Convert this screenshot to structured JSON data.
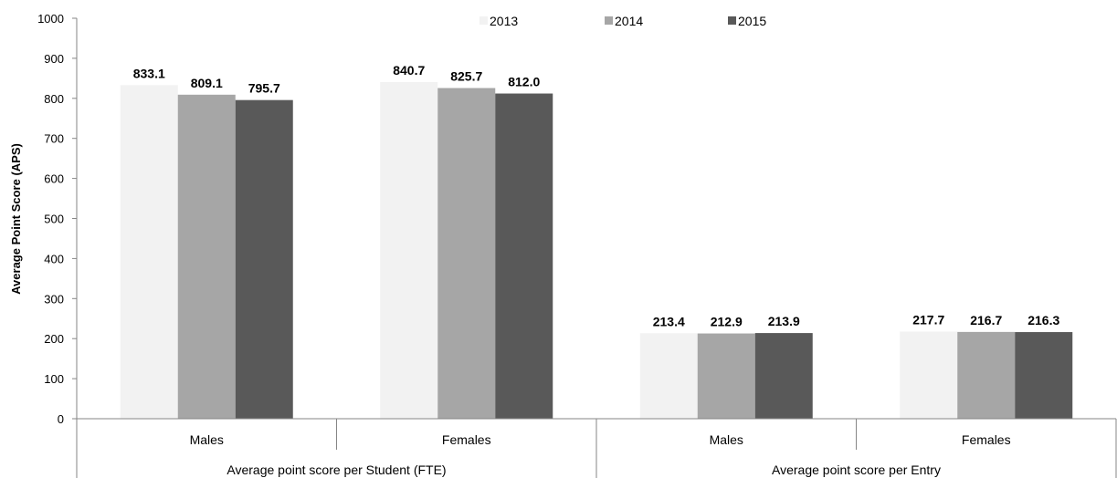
{
  "chart_data": {
    "type": "bar",
    "ylabel": "Average Point Score (APS)",
    "ylim": [
      0,
      1000
    ],
    "yticks": [
      0,
      100,
      200,
      300,
      400,
      500,
      600,
      700,
      800,
      900,
      1000
    ],
    "groups": [
      {
        "label": "Average point score per Student (FTE)",
        "categories": [
          "Males",
          "Females"
        ]
      },
      {
        "label": "Average point score per Entry",
        "categories": [
          "Males",
          "Females"
        ]
      }
    ],
    "series": [
      {
        "name": "2013",
        "color": "#f2f2f2",
        "values": [
          833.1,
          840.7,
          213.4,
          217.7
        ],
        "labels": [
          "833.1",
          "840.7",
          "213.4",
          "217.7"
        ]
      },
      {
        "name": "2014",
        "color": "#a6a6a6",
        "values": [
          809.1,
          825.7,
          212.9,
          216.7
        ],
        "labels": [
          "809.1",
          "825.7",
          "212.9",
          "216.7"
        ]
      },
      {
        "name": "2015",
        "color": "#595959",
        "values": [
          795.7,
          812.0,
          213.9,
          216.3
        ],
        "labels": [
          "795.7",
          "812.0",
          "213.9",
          "216.3"
        ]
      }
    ],
    "legend": {
      "position": "top-center"
    },
    "grid": false
  }
}
